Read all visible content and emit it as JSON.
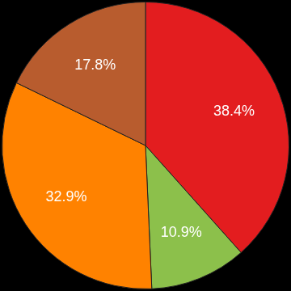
{
  "chart_data": {
    "type": "pie",
    "values": [
      38.4,
      10.9,
      32.9,
      17.8
    ],
    "value_labels": [
      "38.4%",
      "10.9%",
      "32.9%",
      "17.8%"
    ],
    "colors": [
      "#e31d1f",
      "#8cc04b",
      "#ff8200",
      "#b85c2e"
    ],
    "data_labels": true
  }
}
